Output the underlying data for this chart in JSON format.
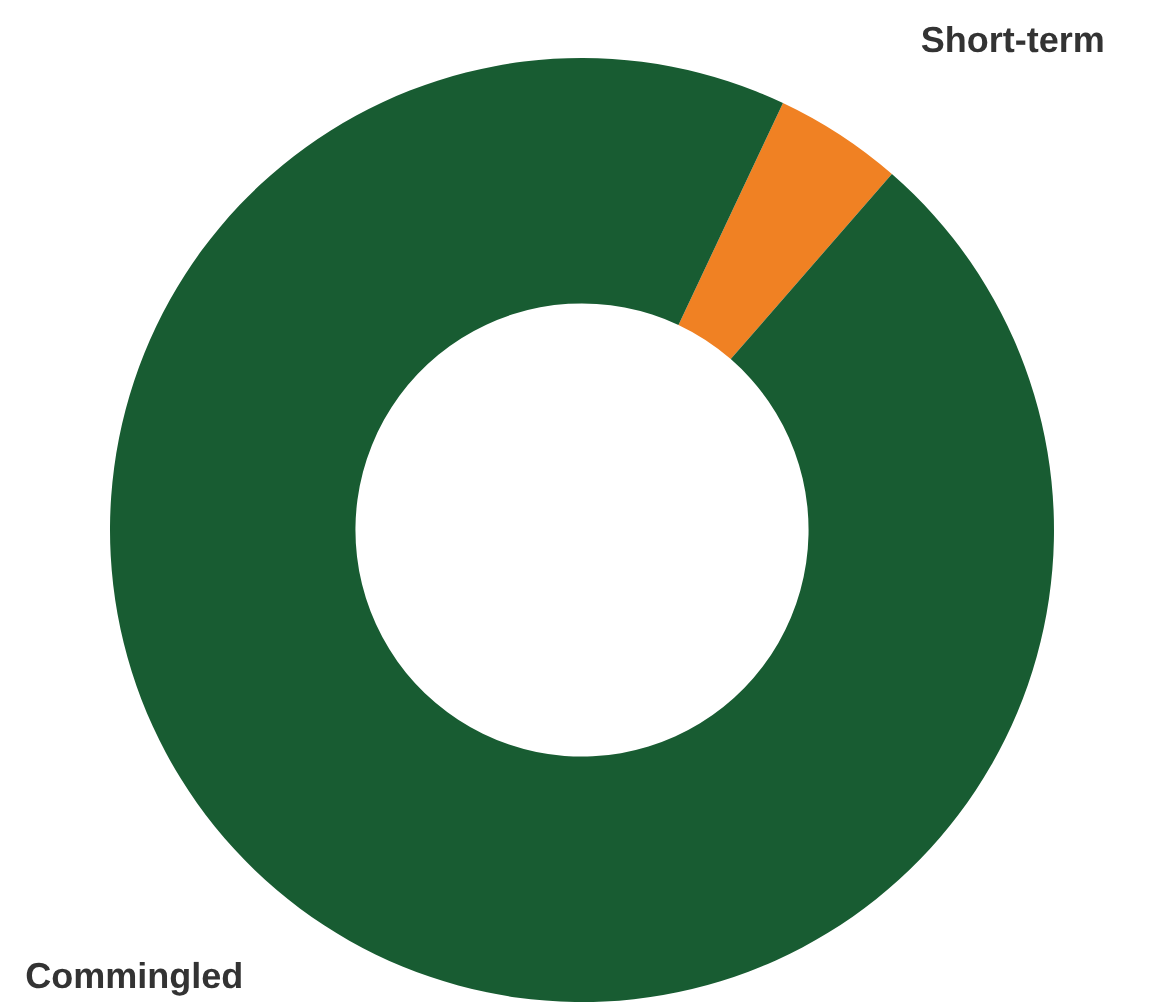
{
  "chart_data": {
    "type": "donut",
    "categories": [
      "Short-term",
      "Commingled"
    ],
    "values": [
      4.4,
      95.6
    ],
    "colors": [
      "#f08123",
      "#185c32"
    ]
  }
}
